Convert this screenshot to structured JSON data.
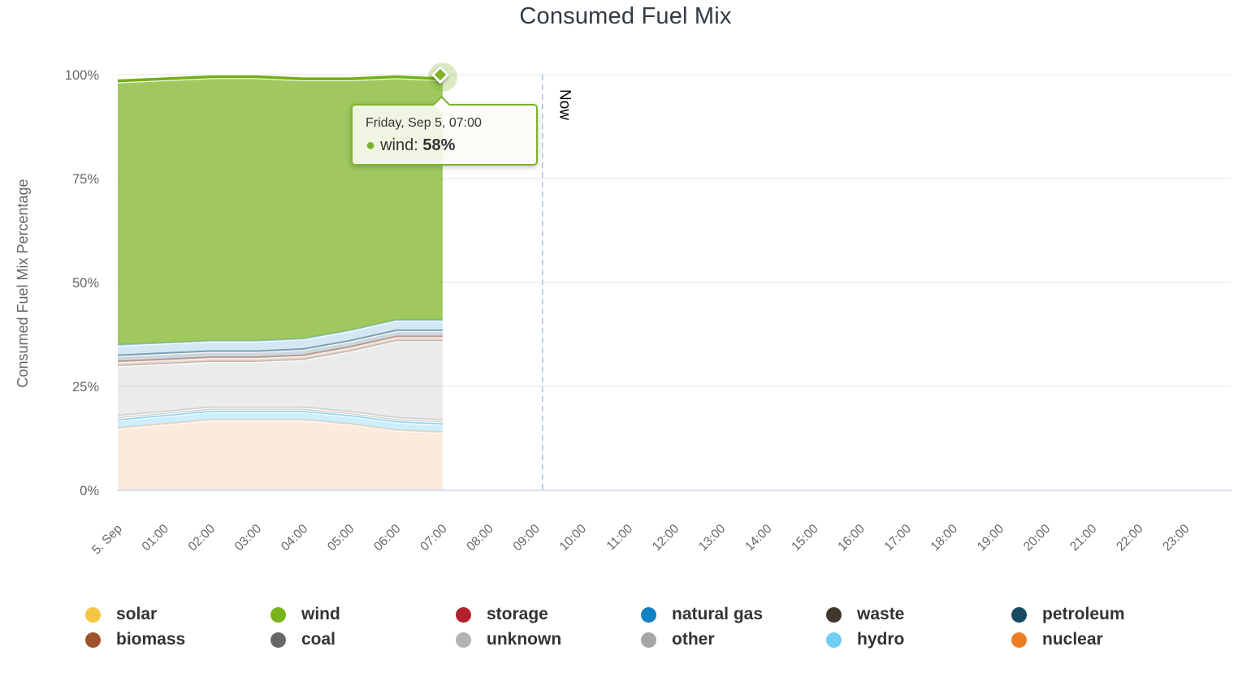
{
  "chart": {
    "title": "Consumed Fuel Mix",
    "y_axis_title": "Consumed Fuel Mix Percentage",
    "context_menu_icon": "kebab-menu",
    "tooltip": {
      "date": "Friday, Sep 5, 07:00",
      "series_label": "wind:",
      "value": "58%",
      "bullet": "●",
      "bullet_color": "#7cb32a",
      "border_color": "#7cb32a"
    }
  },
  "chart_data": {
    "type": "area",
    "stacking": "normal",
    "unit": "%",
    "title": "Consumed Fuel Mix",
    "xlabel": "",
    "ylabel": "Consumed Fuel Mix Percentage",
    "ylim": [
      0,
      100
    ],
    "xlim_hours": [
      0,
      24
    ],
    "grid": true,
    "legend_position": "bottom",
    "x_tick_labels": [
      "5. Sep",
      "01:00",
      "02:00",
      "03:00",
      "04:00",
      "05:00",
      "06:00",
      "07:00",
      "08:00",
      "09:00",
      "10:00",
      "11:00",
      "12:00",
      "13:00",
      "14:00",
      "15:00",
      "16:00",
      "17:00",
      "18:00",
      "19:00",
      "20:00",
      "21:00",
      "22:00",
      "23:00"
    ],
    "y_ticks": [
      {
        "value": 0,
        "label": "0%"
      },
      {
        "value": 25,
        "label": "25%"
      },
      {
        "value": 50,
        "label": "50%"
      },
      {
        "value": 75,
        "label": "75%"
      },
      {
        "value": 100,
        "label": "100%"
      }
    ],
    "x_hours": [
      0,
      1,
      2,
      3,
      4,
      5,
      6,
      7
    ],
    "now_line": {
      "label": "Now",
      "x_hour": 9.15,
      "color": "#a9c2de"
    },
    "tooltip_point": {
      "x_label": "Friday, Sep 5, 07:00",
      "series": "wind",
      "value_pct": 58,
      "x_hour": 7
    },
    "series": [
      {
        "name": "nuclear",
        "color": "#ee7e23",
        "fill": "rgba(238,126,35,0.16)",
        "line_width": 2,
        "line_opacity": 0.3,
        "values": [
          15,
          16,
          17,
          17,
          17,
          16,
          14.5,
          14
        ]
      },
      {
        "name": "hydro",
        "color": "#70cdf3",
        "fill": "rgba(112,205,243,0.35)",
        "line_width": 2,
        "line_opacity": 0.8,
        "values": [
          2,
          2,
          2,
          2,
          2,
          2,
          2,
          2
        ]
      },
      {
        "name": "other",
        "color": "#a6a6a6",
        "fill": "rgba(166,166,166,0.20)",
        "line_width": 1.5,
        "line_opacity": 0.55,
        "values": [
          0.5,
          0.5,
          0.5,
          0.5,
          0.5,
          0.5,
          0.5,
          0.5
        ]
      },
      {
        "name": "unknown",
        "color": "#b3b3b3",
        "fill": "rgba(179,179,179,0.20)",
        "line_width": 1.5,
        "line_opacity": 0.55,
        "values": [
          0.5,
          0.5,
          0.5,
          0.5,
          0.5,
          0.5,
          0.5,
          0.5
        ]
      },
      {
        "name": "coal",
        "color": "#676767",
        "fill": "rgba(103,103,103,0.13)",
        "line_width": 1.5,
        "line_opacity": 0.35,
        "values": [
          12,
          11.5,
          11,
          11,
          11.5,
          14.5,
          18.5,
          19
        ]
      },
      {
        "name": "biomass",
        "color": "#a0522d",
        "fill": "rgba(160,82,45,0.25)",
        "line_width": 2,
        "line_opacity": 0.5,
        "values": [
          1,
          1,
          1,
          1,
          1,
          1,
          1,
          1
        ]
      },
      {
        "name": "petroleum",
        "color": "#174a63",
        "fill": "rgba(23,74,99,0.22)",
        "line_width": 2,
        "line_opacity": 0.5,
        "values": [
          1.5,
          1.5,
          1.5,
          1.5,
          1.5,
          1.5,
          1.5,
          1.5
        ]
      },
      {
        "name": "natural gas",
        "color": "#1181c4",
        "fill": "rgba(17,129,196,0.18)",
        "line_width": 2,
        "line_opacity": 0.45,
        "values": [
          2.5,
          2.5,
          2.5,
          2.5,
          2.5,
          2.5,
          2.5,
          2.5
        ]
      },
      {
        "name": "wind",
        "color": "#74ae17",
        "fill": "rgba(125,180,35,0.73)",
        "line_width": 3.5,
        "line_opacity": 1.0,
        "values": [
          63.5,
          63.5,
          63.5,
          63.5,
          62.5,
          60.5,
          58.5,
          58
        ]
      }
    ],
    "legend": [
      {
        "label": "solar",
        "color": "#f6c544"
      },
      {
        "label": "wind",
        "color": "#77b41c"
      },
      {
        "label": "storage",
        "color": "#b2222c"
      },
      {
        "label": "natural gas",
        "color": "#1181c4"
      },
      {
        "label": "waste",
        "color": "#41382b"
      },
      {
        "label": "petroleum",
        "color": "#174a63"
      },
      {
        "label": "biomass",
        "color": "#a0522d"
      },
      {
        "label": "coal",
        "color": "#676767"
      },
      {
        "label": "unknown",
        "color": "#b3b3b3"
      },
      {
        "label": "other",
        "color": "#a6a6a6"
      },
      {
        "label": "hydro",
        "color": "#70cdf3"
      },
      {
        "label": "nuclear",
        "color": "#ee7e23"
      }
    ]
  },
  "axis_colors": {
    "grid_line": "#e6e6e6",
    "axis_line": "#ccd6eb",
    "tick_label": "#666666"
  }
}
